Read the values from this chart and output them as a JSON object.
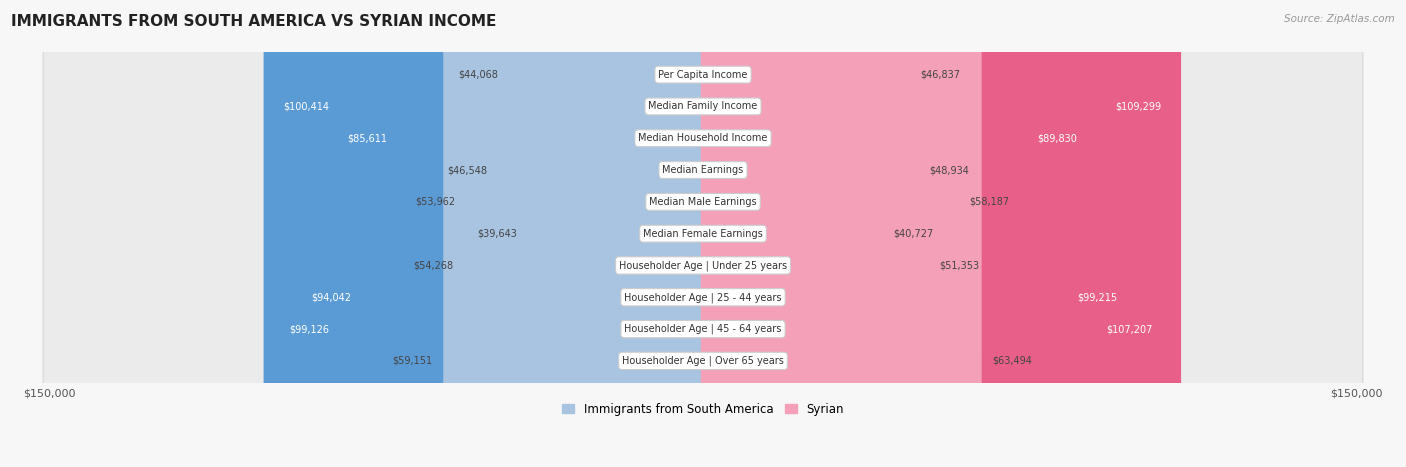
{
  "title": "IMMIGRANTS FROM SOUTH AMERICA VS SYRIAN INCOME",
  "source": "Source: ZipAtlas.com",
  "categories": [
    "Per Capita Income",
    "Median Family Income",
    "Median Household Income",
    "Median Earnings",
    "Median Male Earnings",
    "Median Female Earnings",
    "Householder Age | Under 25 years",
    "Householder Age | 25 - 44 years",
    "Householder Age | 45 - 64 years",
    "Householder Age | Over 65 years"
  ],
  "left_values": [
    44068,
    100414,
    85611,
    46548,
    53962,
    39643,
    54268,
    94042,
    99126,
    59151
  ],
  "right_values": [
    46837,
    109299,
    89830,
    48934,
    58187,
    40727,
    51353,
    99215,
    107207,
    63494
  ],
  "left_color": "#a8c4e0",
  "right_color": "#f4a0b8",
  "left_label": "Immigrants from South America",
  "right_label": "Syrian",
  "left_highlight": [
    false,
    true,
    true,
    false,
    false,
    false,
    false,
    true,
    true,
    false
  ],
  "right_highlight": [
    false,
    true,
    true,
    false,
    false,
    false,
    false,
    true,
    true,
    false
  ],
  "left_highlight_color": "#5b9bd5",
  "right_highlight_color": "#e8608a",
  "max_val": 150000,
  "background_color": "#f7f7f7",
  "row_color": "#ebebeb",
  "row_border_color": "#d8d8d8"
}
